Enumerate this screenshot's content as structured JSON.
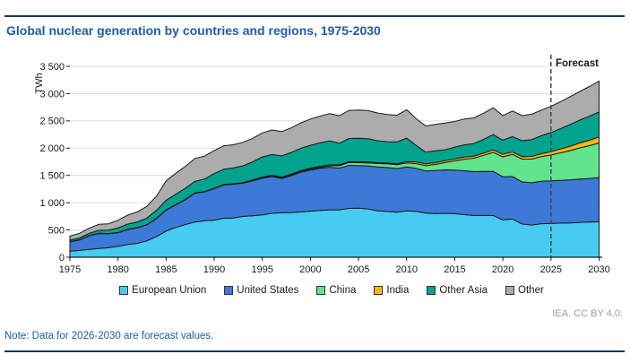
{
  "header": {
    "title": "Global nuclear generation by countries and regions, 1975-2030"
  },
  "footer": {
    "note": "Note: Data for 2026-2030 are forecast values.",
    "credit": "IEA. CC BY 4.0."
  },
  "colors": {
    "title_blue": "#1D5DA9",
    "rule_navy": "#17375E",
    "grid": "#DCDCDC",
    "axis": "#1A1A1A",
    "band_stroke": "#1A1A1A",
    "forecast_line": "#3E4A52",
    "credit_gray": "#9C9C9C"
  },
  "chart_data": {
    "type": "area",
    "stacked": true,
    "title": "Global nuclear generation by countries and regions, 1975-2030",
    "xlabel": "",
    "ylabel": "TWh",
    "ylim": [
      0,
      3500
    ],
    "grid": true,
    "legend_position": "bottom",
    "forecast_label": "Forecast",
    "forecast_start_year": 2025,
    "x_ticks": [
      1975,
      1980,
      1985,
      1990,
      1995,
      2000,
      2005,
      2010,
      2015,
      2020,
      2025,
      2030
    ],
    "y_ticks": [
      0,
      500,
      1000,
      1500,
      2000,
      2500,
      3000,
      3500
    ],
    "y_tick_labels": [
      "0",
      "500",
      "1 000",
      "1 500",
      "2 000",
      "2 500",
      "3 000",
      "3 500"
    ],
    "years": [
      1975,
      1976,
      1977,
      1978,
      1979,
      1980,
      1981,
      1982,
      1983,
      1984,
      1985,
      1986,
      1987,
      1988,
      1989,
      1990,
      1991,
      1992,
      1993,
      1994,
      1995,
      1996,
      1997,
      1998,
      1999,
      2000,
      2001,
      2002,
      2003,
      2004,
      2005,
      2006,
      2007,
      2008,
      2009,
      2010,
      2011,
      2012,
      2013,
      2014,
      2015,
      2016,
      2017,
      2018,
      2019,
      2020,
      2021,
      2022,
      2023,
      2024,
      2025,
      2026,
      2027,
      2028,
      2029,
      2030
    ],
    "series": [
      {
        "name": "European Union",
        "color": "#47CBF2",
        "values": [
          110,
          125,
          145,
          160,
          175,
          200,
          235,
          255,
          300,
          380,
          480,
          545,
          600,
          645,
          670,
          680,
          715,
          720,
          750,
          760,
          775,
          805,
          815,
          820,
          830,
          845,
          860,
          870,
          870,
          895,
          900,
          885,
          850,
          840,
          825,
          850,
          840,
          810,
          800,
          805,
          800,
          780,
          765,
          765,
          765,
          685,
          700,
          610,
          590,
          615,
          620,
          625,
          630,
          640,
          645,
          650
        ]
      },
      {
        "name": "United States",
        "color": "#3D79D6",
        "values": [
          175,
          190,
          250,
          275,
          255,
          250,
          275,
          285,
          295,
          330,
          385,
          415,
          455,
          530,
          530,
          577,
          613,
          620,
          610,
          640,
          673,
          675,
          630,
          675,
          730,
          754,
          770,
          780,
          765,
          790,
          780,
          790,
          805,
          805,
          800,
          807,
          790,
          770,
          790,
          797,
          797,
          805,
          805,
          808,
          810,
          790,
          780,
          772,
          775,
          780,
          780,
          785,
          790,
          795,
          800,
          810
        ]
      },
      {
        "name": "China",
        "color": "#62E38E",
        "values": [
          0,
          0,
          0,
          0,
          0,
          0,
          0,
          0,
          0,
          0,
          0,
          0,
          0,
          0,
          0,
          0,
          0,
          0,
          2,
          14,
          13,
          14,
          14,
          14,
          15,
          17,
          17,
          25,
          42,
          50,
          53,
          55,
          62,
          68,
          70,
          74,
          87,
          97,
          112,
          133,
          171,
          213,
          248,
          295,
          349,
          366,
          408,
          418,
          435,
          450,
          475,
          505,
          535,
          570,
          600,
          635
        ]
      },
      {
        "name": "India",
        "color": "#FFB612",
        "values": [
          3,
          3,
          3,
          3,
          3,
          3,
          3,
          2,
          3,
          4,
          5,
          5,
          5,
          6,
          5,
          6,
          6,
          7,
          6,
          6,
          8,
          9,
          10,
          12,
          13,
          17,
          19,
          19,
          18,
          17,
          17,
          19,
          17,
          15,
          19,
          23,
          32,
          33,
          33,
          35,
          37,
          38,
          37,
          39,
          45,
          45,
          44,
          46,
          48,
          53,
          60,
          70,
          80,
          90,
          100,
          110
        ]
      },
      {
        "name": "Other Asia",
        "color": "#00A48E",
        "values": [
          25,
          35,
          40,
          55,
          65,
          85,
          95,
          105,
          120,
          145,
          175,
          190,
          205,
          210,
          230,
          270,
          280,
          290,
          310,
          330,
          370,
          380,
          390,
          400,
          410,
          420,
          430,
          440,
          395,
          425,
          430,
          425,
          400,
          390,
          400,
          430,
          300,
          215,
          215,
          200,
          215,
          225,
          230,
          255,
          280,
          260,
          280,
          290,
          310,
          330,
          350,
          375,
          400,
          420,
          440,
          460
        ]
      },
      {
        "name": "Other",
        "color": "#ACACAC",
        "values": [
          75,
          85,
          95,
          110,
          115,
          140,
          165,
          185,
          215,
          260,
          355,
          385,
          400,
          420,
          420,
          420,
          430,
          425,
          430,
          430,
          440,
          450,
          445,
          450,
          465,
          480,
          490,
          500,
          505,
          515,
          520,
          515,
          510,
          500,
          490,
          520,
          490,
          480,
          485,
          490,
          470,
          475,
          470,
          480,
          490,
          450,
          470,
          460,
          465,
          470,
          480,
          495,
          510,
          525,
          545,
          565
        ]
      }
    ]
  }
}
